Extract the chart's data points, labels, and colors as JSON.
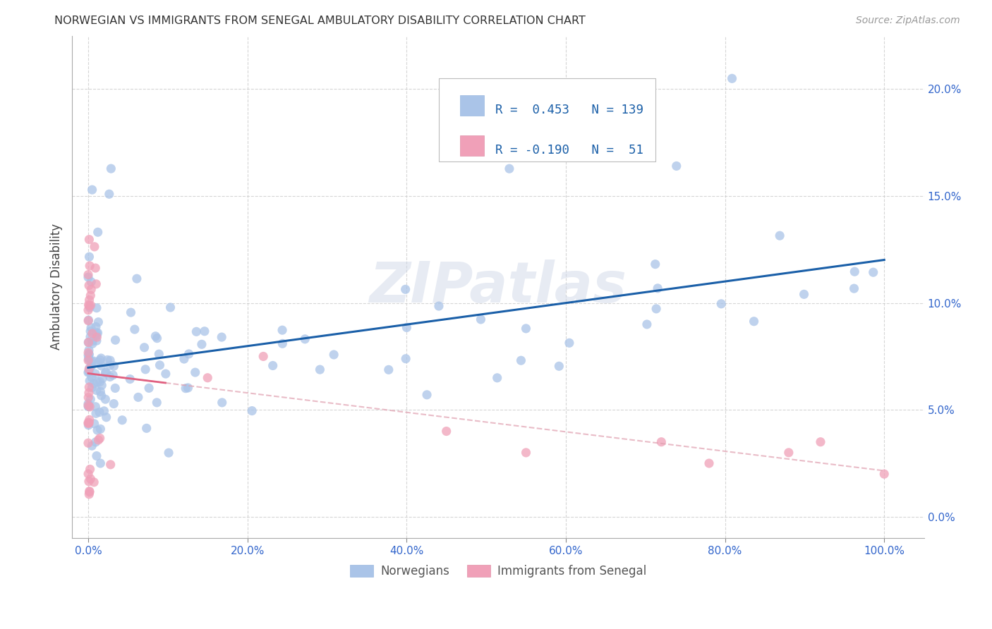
{
  "title": "NORWEGIAN VS IMMIGRANTS FROM SENEGAL AMBULATORY DISABILITY CORRELATION CHART",
  "source": "Source: ZipAtlas.com",
  "ylabel": "Ambulatory Disability",
  "r_norwegian": 0.453,
  "n_norwegian": 139,
  "r_senegal": -0.19,
  "n_senegal": 51,
  "color_norwegian": "#aac4e8",
  "color_senegal": "#f0a0b8",
  "line_color_norwegian": "#1a5fa8",
  "line_color_senegal": "#e06080",
  "line_color_senegal_dashed": "#e0a0b0",
  "watermark": "ZIPatlas",
  "x_ticks": [
    0.0,
    0.2,
    0.4,
    0.6,
    0.8,
    1.0
  ],
  "y_ticks": [
    0.0,
    0.05,
    0.1,
    0.15,
    0.2
  ],
  "xlim": [
    -0.02,
    1.05
  ],
  "ylim": [
    -0.01,
    0.225
  ]
}
